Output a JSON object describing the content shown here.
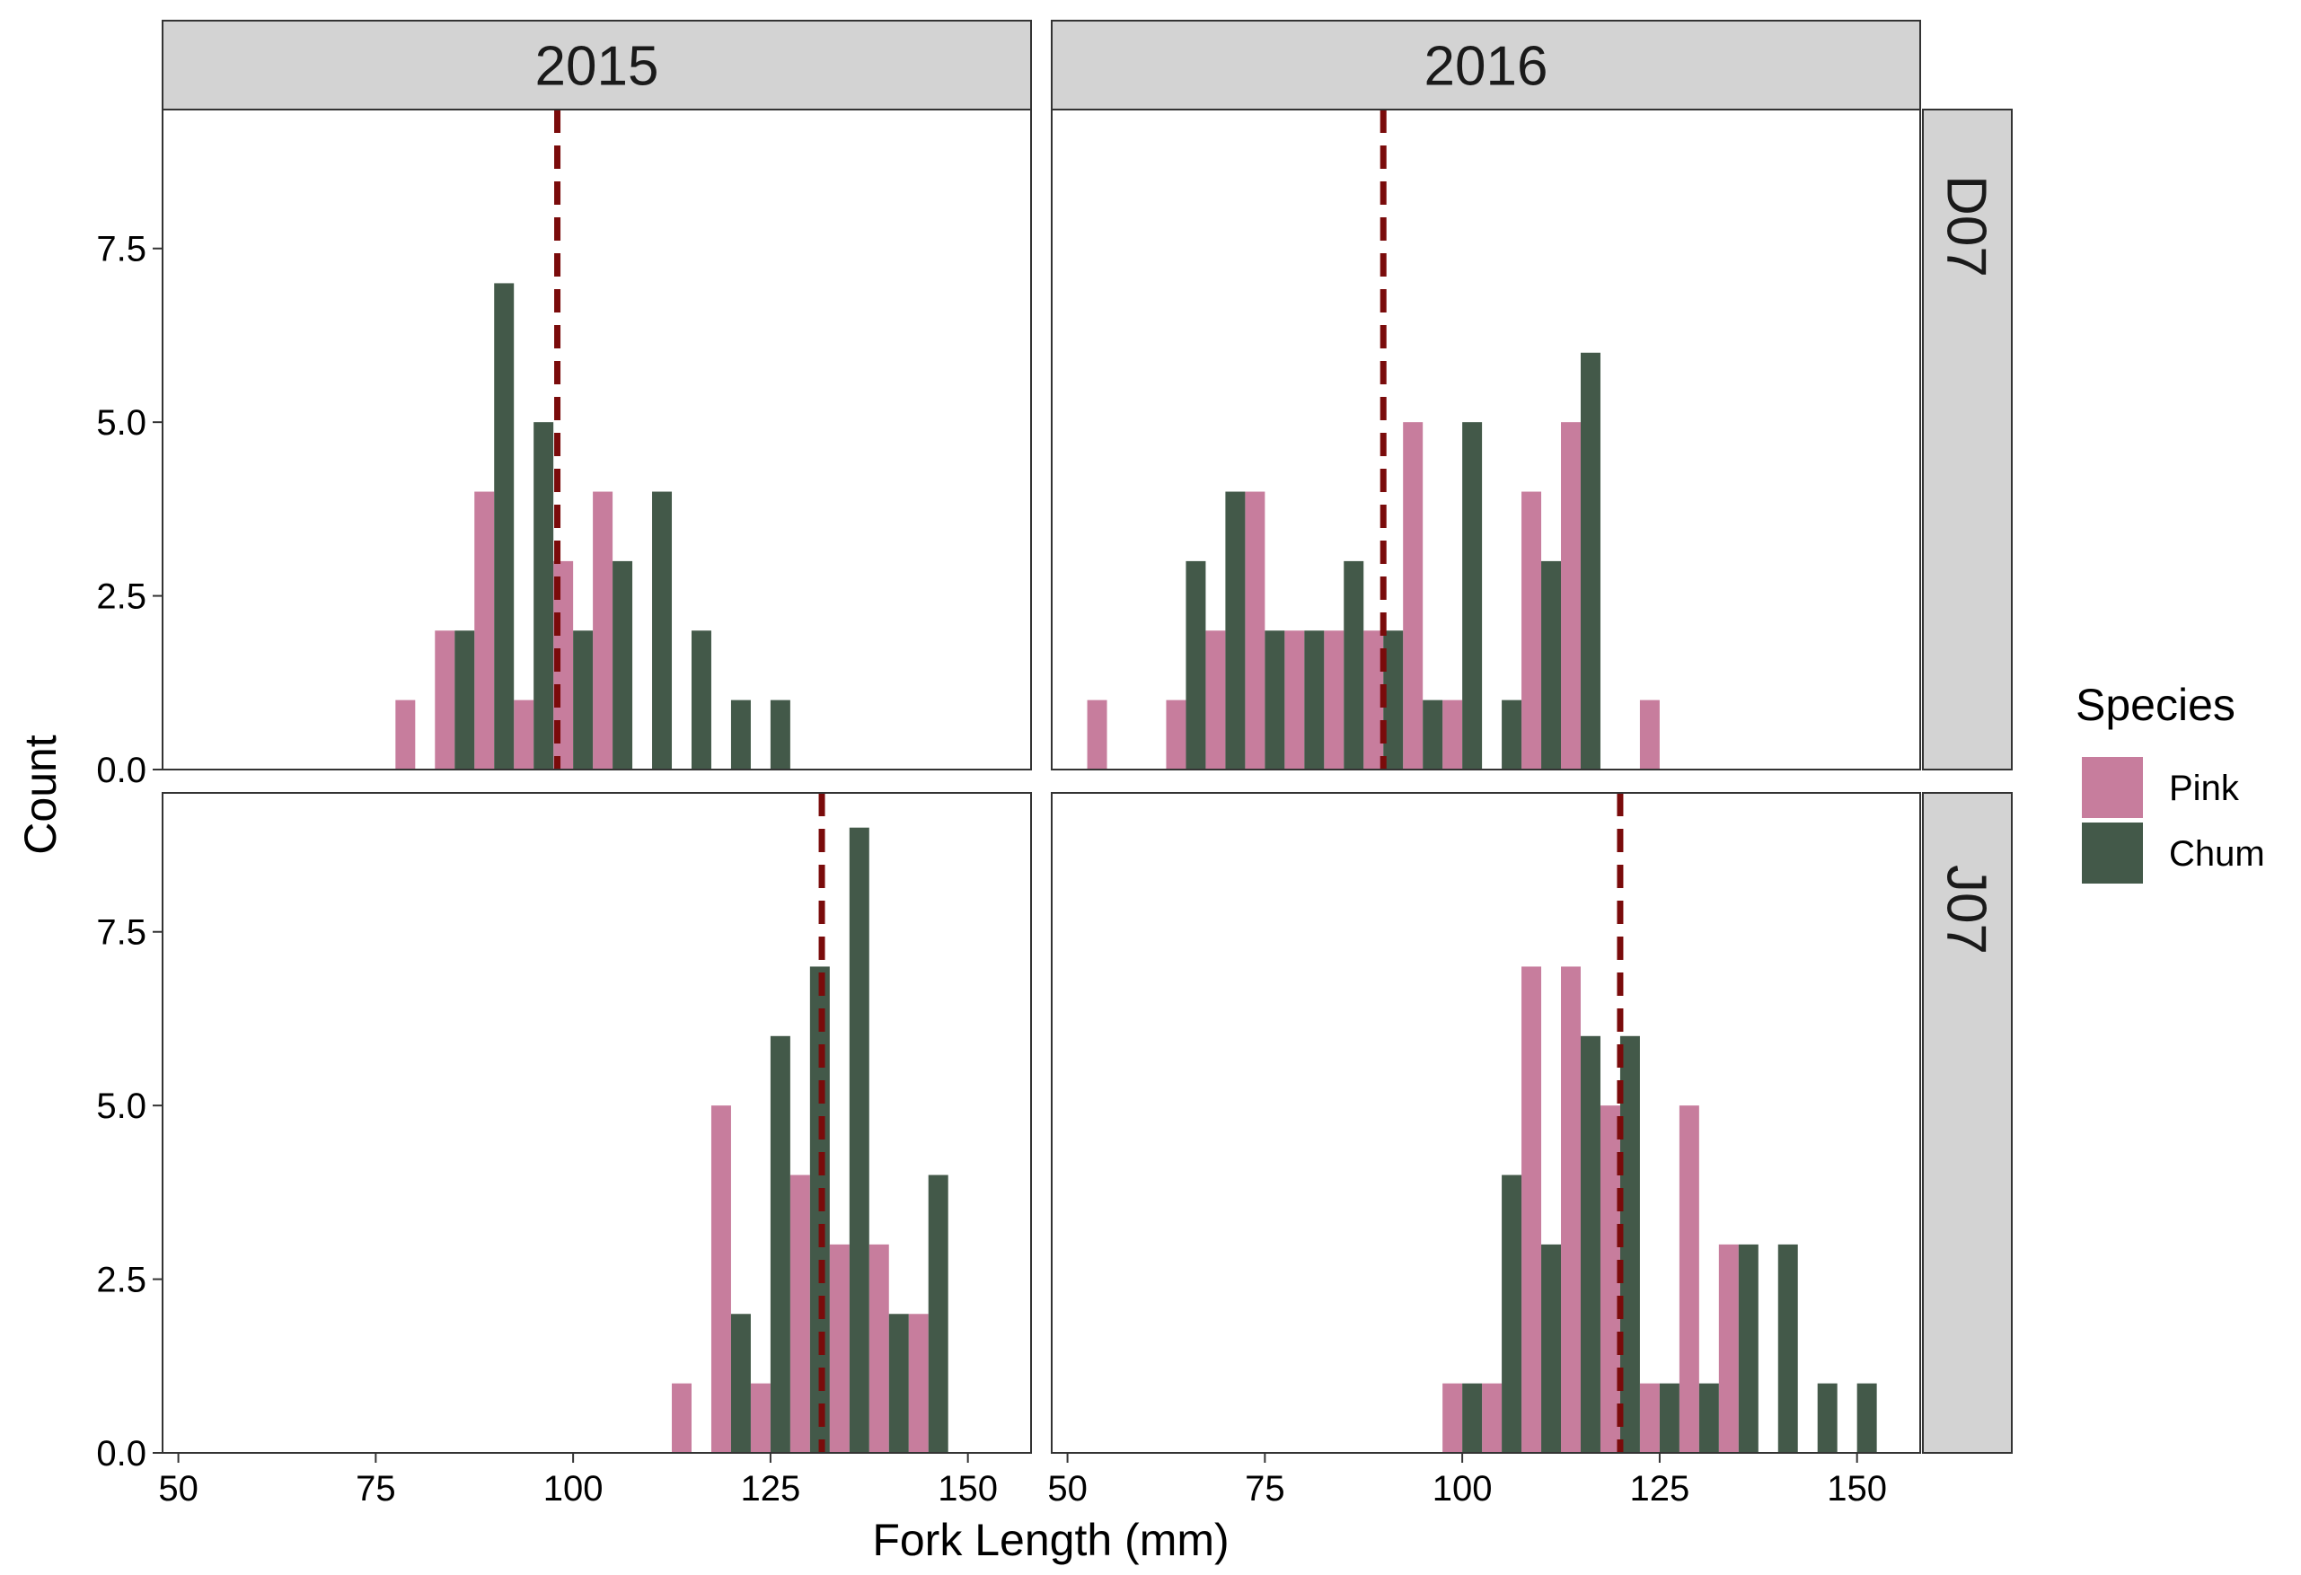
{
  "chart_data": {
    "type": "bar",
    "subtype": "faceted dodged histogram",
    "xlabel": "Fork Length (mm)",
    "ylabel": "Count",
    "xlim": [
      48,
      158
    ],
    "ylim": [
      0,
      9.5
    ],
    "x_ticks": [
      50,
      75,
      100,
      125,
      150
    ],
    "x_tick_labels": [
      "50",
      "75",
      "100",
      "125",
      "150"
    ],
    "y_ticks": [
      0,
      2.5,
      5,
      7.5
    ],
    "y_tick_labels": [
      "0.0",
      "2.5",
      "5.0",
      "7.5"
    ],
    "bin_width": 5,
    "grid": false,
    "legend": {
      "title": "Species",
      "position": "right",
      "items": [
        {
          "name": "Pink",
          "color": "#c77d9d"
        },
        {
          "name": "Chum",
          "color": "#435949"
        }
      ]
    },
    "mean_line_color": "#7a0b0b",
    "columns": [
      "2015",
      "2016"
    ],
    "rows": [
      "D07",
      "J07"
    ],
    "panels": [
      {
        "col": "2015",
        "row": "D07",
        "mean_line_x": 98,
        "series": [
          {
            "name": "Pink",
            "bins": [
              [
                80,
                1
              ],
              [
                85,
                2
              ],
              [
                90,
                4
              ],
              [
                95,
                1
              ],
              [
                100,
                3
              ],
              [
                105,
                4
              ]
            ]
          },
          {
            "name": "Chum",
            "bins": [
              [
                85,
                2
              ],
              [
                90,
                7
              ],
              [
                95,
                5
              ],
              [
                100,
                2
              ],
              [
                105,
                3
              ],
              [
                110,
                4
              ],
              [
                115,
                2
              ],
              [
                120,
                1
              ],
              [
                125,
                1
              ]
            ]
          }
        ]
      },
      {
        "col": "2016",
        "row": "D07",
        "mean_line_x": 90,
        "series": [
          {
            "name": "Pink",
            "bins": [
              [
                55,
                1
              ],
              [
                65,
                1
              ],
              [
                70,
                2
              ],
              [
                75,
                4
              ],
              [
                80,
                2
              ],
              [
                85,
                2
              ],
              [
                90,
                2
              ],
              [
                95,
                5
              ],
              [
                100,
                1
              ],
              [
                110,
                4
              ],
              [
                115,
                5
              ],
              [
                125,
                1
              ]
            ]
          },
          {
            "name": "Chum",
            "bins": [
              [
                65,
                3
              ],
              [
                70,
                4
              ],
              [
                75,
                2
              ],
              [
                80,
                2
              ],
              [
                85,
                3
              ],
              [
                90,
                2
              ],
              [
                95,
                1
              ],
              [
                100,
                5
              ],
              [
                105,
                1
              ],
              [
                110,
                3
              ],
              [
                115,
                6
              ]
            ]
          }
        ]
      },
      {
        "col": "2015",
        "row": "J07",
        "mean_line_x": 131.5,
        "series": [
          {
            "name": "Pink",
            "bins": [
              [
                115,
                1
              ],
              [
                120,
                5
              ],
              [
                125,
                1
              ],
              [
                130,
                4
              ],
              [
                135,
                3
              ],
              [
                140,
                3
              ],
              [
                145,
                2
              ]
            ]
          },
          {
            "name": "Chum",
            "bins": [
              [
                120,
                2
              ],
              [
                125,
                6
              ],
              [
                130,
                7
              ],
              [
                135,
                9
              ],
              [
                140,
                2
              ],
              [
                145,
                4
              ]
            ]
          }
        ]
      },
      {
        "col": "2016",
        "row": "J07",
        "mean_line_x": 120,
        "series": [
          {
            "name": "Pink",
            "bins": [
              [
                100,
                1
              ],
              [
                105,
                1
              ],
              [
                110,
                7
              ],
              [
                115,
                7
              ],
              [
                120,
                5
              ],
              [
                125,
                1
              ],
              [
                130,
                5
              ],
              [
                135,
                3
              ]
            ]
          },
          {
            "name": "Chum",
            "bins": [
              [
                100,
                1
              ],
              [
                105,
                4
              ],
              [
                110,
                3
              ],
              [
                115,
                6
              ],
              [
                120,
                6
              ],
              [
                125,
                1
              ],
              [
                130,
                1
              ],
              [
                135,
                3
              ],
              [
                140,
                3
              ],
              [
                145,
                1
              ],
              [
                150,
                1
              ]
            ]
          }
        ]
      }
    ]
  }
}
